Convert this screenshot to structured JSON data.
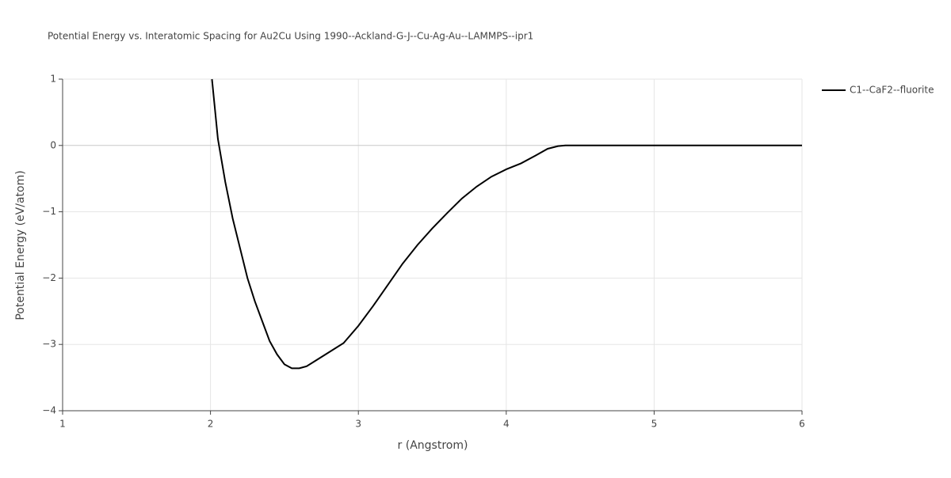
{
  "chart_data": {
    "type": "line",
    "title": "Potential Energy vs. Interatomic Spacing for Au2Cu Using 1990--Ackland-G-J--Cu-Ag-Au--LAMMPS--ipr1",
    "x_label": "r (Angstrom)",
    "y_label": "Potential Energy (eV/atom)",
    "x": [
      2.01,
      2.05,
      2.1,
      2.15,
      2.2,
      2.25,
      2.3,
      2.35,
      2.4,
      2.45,
      2.5,
      2.55,
      2.6,
      2.65,
      2.7,
      2.8,
      2.9,
      3.0,
      3.1,
      3.2,
      3.3,
      3.4,
      3.5,
      3.6,
      3.7,
      3.8,
      3.9,
      4.0,
      4.1,
      4.2,
      4.28,
      4.35,
      4.4,
      4.5,
      5.0,
      5.5,
      6.0
    ],
    "series": [
      {
        "name": "C1--CaF2--fluorite",
        "color": "#000000",
        "values": [
          1.0,
          0.1,
          -0.55,
          -1.1,
          -1.55,
          -2.0,
          -2.35,
          -2.65,
          -2.95,
          -3.15,
          -3.3,
          -3.36,
          -3.36,
          -3.33,
          -3.26,
          -3.12,
          -2.98,
          -2.72,
          -2.42,
          -2.1,
          -1.78,
          -1.5,
          -1.25,
          -1.02,
          -0.8,
          -0.62,
          -0.47,
          -0.36,
          -0.27,
          -0.15,
          -0.05,
          -0.01,
          0,
          0,
          0,
          0,
          0
        ]
      }
    ],
    "xlim": [
      1,
      6
    ],
    "ylim": [
      -4,
      1
    ],
    "xticks": [
      1,
      2,
      3,
      4,
      5,
      6
    ],
    "yticks": [
      {
        "value": -4,
        "label": "−4"
      },
      {
        "value": -3,
        "label": "−3"
      },
      {
        "value": -2,
        "label": "−2"
      },
      {
        "value": -1,
        "label": "−1"
      },
      0,
      1
    ],
    "grid": true,
    "legend": "right"
  }
}
